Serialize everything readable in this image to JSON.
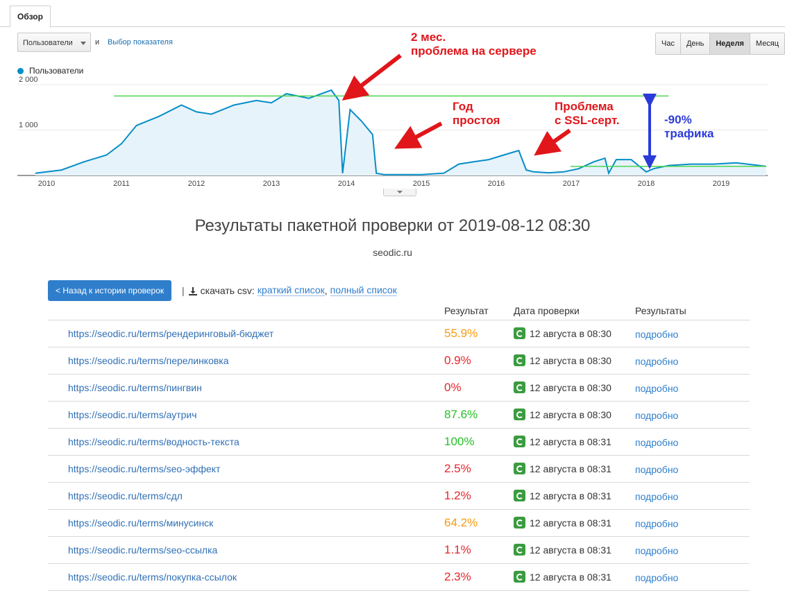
{
  "analytics": {
    "tab": "Обзор",
    "metric_select": "Пользователи",
    "and_text": "и",
    "metric_link": "Выбор показателя",
    "periods": [
      "Час",
      "День",
      "Неделя",
      "Месяц"
    ],
    "active_period": "Неделя",
    "legend": "Пользователи",
    "colors": {
      "line": "#058dc7",
      "fill": "#e6f3fa",
      "trend": "#4cd44c",
      "arrow_red": "#e0161b",
      "arrow_blue": "#2b3bd8"
    }
  },
  "annotations": {
    "server_problem": [
      "2 мес.",
      "проблема на сервере"
    ],
    "downtime": [
      "Год",
      "простоя"
    ],
    "ssl": [
      "Проблема",
      "с SSL-серт."
    ],
    "drop": [
      "-90%",
      "трафика"
    ]
  },
  "chart_data": {
    "type": "area",
    "y_ticks": [
      "2 000",
      "1 000"
    ],
    "x_ticks": [
      "2010",
      "2011",
      "2012",
      "2013",
      "2014",
      "2015",
      "2016",
      "2017",
      "2018",
      "2019"
    ],
    "ylim": [
      0,
      2000
    ],
    "series": [
      {
        "x": [
          2009.85,
          2010.2,
          2010.5,
          2010.8,
          2011.0,
          2011.2,
          2011.5,
          2011.8,
          2012.0,
          2012.2,
          2012.5,
          2012.8,
          2013.0,
          2013.2,
          2013.5,
          2013.8,
          2013.9,
          2013.95,
          2014.05,
          2014.2,
          2014.35,
          2014.4,
          2014.5,
          2015.0,
          2015.3,
          2015.5,
          2015.7,
          2015.9,
          2016.1,
          2016.3,
          2016.4,
          2016.5,
          2016.7,
          2016.9,
          2017.1,
          2017.3,
          2017.45,
          2017.5,
          2017.6,
          2017.8,
          2018.0,
          2018.1,
          2018.3,
          2018.6,
          2018.9,
          2019.2,
          2019.45,
          2019.6
        ],
        "y": [
          50,
          120,
          300,
          450,
          700,
          1100,
          1300,
          1550,
          1400,
          1350,
          1550,
          1650,
          1600,
          1800,
          1700,
          1880,
          1650,
          50,
          1450,
          1200,
          900,
          50,
          20,
          20,
          50,
          250,
          300,
          350,
          450,
          550,
          120,
          80,
          60,
          80,
          150,
          300,
          380,
          50,
          350,
          350,
          80,
          150,
          220,
          250,
          250,
          280,
          230,
          200
        ]
      }
    ],
    "trend_lines": [
      {
        "x": [
          2010.9,
          2018.3
        ],
        "y": 1750
      },
      {
        "x": [
          2016.99,
          2019.6
        ],
        "y": 200
      }
    ]
  },
  "results": {
    "title": "Результаты пакетной проверки от 2019-08-12 08:30",
    "domain": "seodic.ru",
    "back_button": "< Назад к истории проверок",
    "separator": "|",
    "csv_label": "скачать csv:",
    "csv_short": "краткий список",
    "csv_comma": ",",
    "csv_full": "полный список",
    "headers": {
      "result": "Результат",
      "date": "Дата проверки",
      "results": "Результаты"
    },
    "rows": [
      {
        "url": "https://seodic.ru/terms/рендеринговый-бюджет",
        "pct": "55.9%",
        "color": "#f39c12",
        "date": "12 августа в 08:30",
        "more": "подробно"
      },
      {
        "url": "https://seodic.ru/terms/перелинковка",
        "pct": "0.9%",
        "color": "#e5252b",
        "date": "12 августа в 08:30",
        "more": "подробно"
      },
      {
        "url": "https://seodic.ru/terms/пингвин",
        "pct": "0%",
        "color": "#e5252b",
        "date": "12 августа в 08:30",
        "more": "подробно"
      },
      {
        "url": "https://seodic.ru/terms/аутрич",
        "pct": "87.6%",
        "color": "#26c126",
        "date": "12 августа в 08:30",
        "more": "подробно"
      },
      {
        "url": "https://seodic.ru/terms/водность-текста",
        "pct": "100%",
        "color": "#26c126",
        "date": "12 августа в 08:31",
        "more": "подробно"
      },
      {
        "url": "https://seodic.ru/terms/seo-эффект",
        "pct": "2.5%",
        "color": "#e5252b",
        "date": "12 августа в 08:31",
        "more": "подробно"
      },
      {
        "url": "https://seodic.ru/terms/сдл",
        "pct": "1.2%",
        "color": "#e5252b",
        "date": "12 августа в 08:31",
        "more": "подробно"
      },
      {
        "url": "https://seodic.ru/terms/минусинск",
        "pct": "64.2%",
        "color": "#f39c12",
        "date": "12 августа в 08:31",
        "more": "подробно"
      },
      {
        "url": "https://seodic.ru/terms/seo-ссылка",
        "pct": "1.1%",
        "color": "#e5252b",
        "date": "12 августа в 08:31",
        "more": "подробно"
      },
      {
        "url": "https://seodic.ru/terms/покупка-ссылок",
        "pct": "2.3%",
        "color": "#e5252b",
        "date": "12 августа в 08:31",
        "more": "подробно"
      }
    ]
  }
}
